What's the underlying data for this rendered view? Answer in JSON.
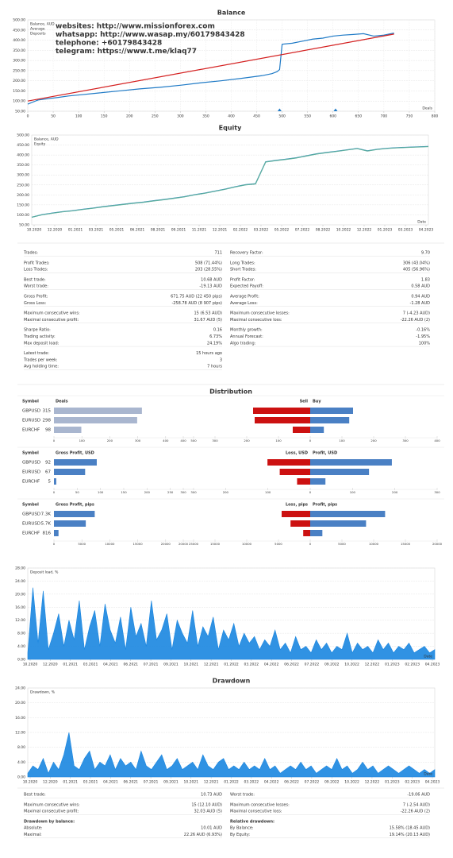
{
  "chart_data": [
    {
      "type": "line",
      "title": "Balance",
      "xlabel": "Deals",
      "xlim": [
        0,
        800
      ],
      "xticks": [
        0,
        50,
        100,
        150,
        200,
        250,
        300,
        350,
        400,
        450,
        500,
        550,
        600,
        650,
        700,
        750,
        800
      ],
      "ylim": [
        50,
        500
      ],
      "yticks": [
        {
          "value": 50,
          "label": "50.00"
        },
        {
          "value": 100,
          "label": "100.00"
        },
        {
          "value": 150,
          "label": "150.00"
        },
        {
          "value": 200,
          "label": "200.00"
        },
        {
          "value": 250,
          "label": "250.00"
        },
        {
          "value": 300,
          "label": "300.00"
        },
        {
          "value": 350,
          "label": "350.00"
        },
        {
          "value": 400,
          "label": "400.00"
        },
        {
          "value": 450,
          "label": "450.00"
        },
        {
          "value": 500,
          "label": "500.00"
        }
      ],
      "grid": true,
      "series": [
        {
          "name": "Balance, AUD",
          "color": "#1f7ac6",
          "x": [
            0,
            10,
            20,
            40,
            60,
            80,
            100,
            140,
            180,
            220,
            260,
            300,
            340,
            380,
            420,
            460,
            480,
            490,
            495,
            500,
            520,
            540,
            560,
            580,
            600,
            620,
            640,
            660,
            680,
            700,
            720
          ],
          "values": [
            85,
            95,
            105,
            112,
            118,
            125,
            130,
            140,
            150,
            160,
            168,
            178,
            190,
            200,
            212,
            225,
            235,
            245,
            255,
            380,
            385,
            395,
            405,
            410,
            420,
            425,
            428,
            432,
            420,
            425,
            435
          ]
        },
        {
          "name": "Average",
          "color": "#d42020",
          "x": [
            0,
            720
          ],
          "values": [
            100,
            430
          ]
        },
        {
          "name": "Deposits",
          "color": "#2a9a3a",
          "x": [
            495,
            605
          ]
        }
      ],
      "annotations": [
        "websites: http://www.missionforex.com",
        "whatsapp: http://www.wasap.my/60179843428",
        "telephone: +60179843428",
        "telegram: https://www.t.me/klaq77"
      ],
      "annotation_color": "#e81c1c"
    },
    {
      "type": "line",
      "title": "Equity",
      "xlabel": "Date",
      "xticks": [
        "10.2020",
        "12.2020",
        "01.2021",
        "03.2021",
        "05.2021",
        "06.2021",
        "08.2021",
        "09.2021",
        "11.2021",
        "12.2021",
        "02.2022",
        "03.2022",
        "05.2022",
        "07.2022",
        "08.2022",
        "10.2022",
        "12.2022",
        "01.2023",
        "03.2023",
        "04.2023"
      ],
      "ylim": [
        50,
        500
      ],
      "yticks": [
        {
          "value": 50,
          "label": "50.00"
        },
        {
          "value": 100,
          "label": "100.00"
        },
        {
          "value": 150,
          "label": "150.00"
        },
        {
          "value": 200,
          "label": "200.00"
        },
        {
          "value": 250,
          "label": "250.00"
        },
        {
          "value": 300,
          "label": "300.00"
        },
        {
          "value": 350,
          "label": "350.00"
        },
        {
          "value": 400,
          "label": "400.00"
        },
        {
          "value": 450,
          "label": "450.00"
        },
        {
          "value": 500,
          "label": "500.00"
        }
      ],
      "grid": true,
      "series": [
        {
          "name": "Balance, AUD",
          "color": "#1f7ac6",
          "values": [
            88,
            101,
            109,
            116,
            121,
            128,
            134,
            141,
            147,
            153,
            159,
            164,
            171,
            177,
            184,
            191,
            201,
            209,
            219,
            229,
            241,
            251,
            256,
            366,
            373,
            379,
            386,
            396,
            406,
            413,
            419,
            426,
            433,
            421,
            429,
            434,
            437,
            439,
            441,
            443
          ]
        },
        {
          "name": "Equity",
          "color": "#5cae9c",
          "values": [
            88,
            100,
            108,
            115,
            120,
            127,
            133,
            140,
            146,
            152,
            158,
            163,
            170,
            176,
            183,
            190,
            200,
            208,
            218,
            228,
            240,
            250,
            255,
            365,
            372,
            378,
            385,
            395,
            405,
            412,
            418,
            425,
            432,
            420,
            428,
            433,
            436,
            438,
            440,
            442
          ]
        }
      ]
    },
    {
      "type": "area",
      "xlabel": "Date",
      "xticks": [
        "10.2020",
        "12.2020",
        "01.2021",
        "03.2021",
        "04.2021",
        "06.2021",
        "07.2021",
        "09.2021",
        "10.2021",
        "12.2021",
        "01.2022",
        "03.2022",
        "04.2022",
        "06.2022",
        "07.2022",
        "09.2022",
        "10.2022",
        "12.2022",
        "01.2023",
        "02.2023",
        "04.2023"
      ],
      "ylim": [
        0,
        28
      ],
      "yticks": [
        {
          "value": 0,
          "label": "0.00"
        },
        {
          "value": 4,
          "label": "4.00"
        },
        {
          "value": 8,
          "label": "8.00"
        },
        {
          "value": 12,
          "label": "12.00"
        },
        {
          "value": 16,
          "label": "16.00"
        },
        {
          "value": 20,
          "label": "20.00"
        },
        {
          "value": 24,
          "label": "24.00"
        },
        {
          "value": 28,
          "label": "28.00"
        }
      ],
      "grid": true,
      "series": [
        {
          "name": "Deposit load, %",
          "color": "#1a86e0",
          "values": [
            2,
            22,
            5,
            21,
            3,
            8,
            14,
            4,
            12,
            6,
            18,
            3,
            10,
            15,
            4,
            17,
            9,
            5,
            13,
            3,
            16,
            7,
            11,
            4,
            18,
            6,
            9,
            14,
            3,
            12,
            8,
            5,
            15,
            4,
            10,
            7,
            13,
            3,
            9,
            6,
            11,
            4,
            8,
            5,
            7,
            3,
            6,
            4,
            9,
            3,
            5,
            2,
            7,
            3,
            4,
            2,
            6,
            3,
            5,
            2,
            4,
            3,
            8,
            2,
            5,
            3,
            4,
            2,
            6,
            3,
            5,
            2,
            4,
            3,
            5,
            2,
            3,
            4,
            2,
            3
          ]
        }
      ]
    },
    {
      "type": "area",
      "title": "Drawdown",
      "xlabel": "Date",
      "xticks": [
        "10.2020",
        "12.2020",
        "01.2021",
        "03.2021",
        "04.2021",
        "06.2021",
        "07.2021",
        "09.2021",
        "10.2021",
        "12.2021",
        "01.2022",
        "03.2022",
        "04.2022",
        "06.2022",
        "07.2022",
        "09.2022",
        "10.2022",
        "12.2022",
        "01.2023",
        "02.2023",
        "04.2023"
      ],
      "ylim": [
        0,
        24
      ],
      "yticks": [
        {
          "value": 0,
          "label": "0.00"
        },
        {
          "value": 4,
          "label": "4.00"
        },
        {
          "value": 8,
          "label": "8.00"
        },
        {
          "value": 12,
          "label": "12.00"
        },
        {
          "value": 16,
          "label": "16.00"
        },
        {
          "value": 20,
          "label": "20.00"
        },
        {
          "value": 24,
          "label": "24.00"
        }
      ],
      "grid": true,
      "series": [
        {
          "name": "Drawdown, %",
          "color": "#1a86e0",
          "values": [
            1,
            3,
            2,
            5,
            1,
            4,
            2,
            6,
            12,
            3,
            2,
            5,
            7,
            2,
            4,
            3,
            6,
            2,
            5,
            3,
            4,
            2,
            7,
            3,
            2,
            4,
            6,
            2,
            3,
            5,
            2,
            3,
            4,
            2,
            6,
            3,
            2,
            4,
            5,
            2,
            3,
            2,
            4,
            2,
            3,
            2,
            5,
            2,
            3,
            1,
            2,
            3,
            2,
            4,
            2,
            3,
            1,
            2,
            3,
            2,
            5,
            2,
            3,
            1,
            2,
            4,
            2,
            3,
            1,
            2,
            3,
            2,
            1,
            2,
            3,
            2,
            1,
            2,
            1,
            2
          ]
        }
      ]
    }
  ],
  "stats": {
    "left": [
      {
        "rows": [
          {
            "label": "Trades:",
            "value": "711"
          }
        ]
      },
      {
        "rows": [
          {
            "label": "Profit Trades:",
            "value": "508 (71.44%)"
          },
          {
            "label": "Loss Trades:",
            "value": "203 (28.55%)"
          }
        ]
      },
      {
        "rows": [
          {
            "label": "Best trade:",
            "value": "10.68 AUD"
          },
          {
            "label": "Worst trade:",
            "value": "-19.13 AUD",
            "color": "#d42020"
          }
        ]
      },
      {
        "rows": [
          {
            "label": "Gross Profit:",
            "value": "671.75 AUD (22 450 pips)",
            "color": "#d42020"
          },
          {
            "label": "Gross Loss:",
            "value": "-258.78 AUD (8 907 pips)",
            "color": "#d42020"
          }
        ]
      },
      {
        "rows": [
          {
            "label": "Maximum consecutive wins:",
            "value": "15 (6.53 AUD)"
          },
          {
            "label": "Maximal consecutive profit:",
            "value": "31.67 AUD (5)"
          }
        ]
      },
      {
        "rows": [
          {
            "label": "Sharpe Ratio:",
            "value": "0.16"
          },
          {
            "label": "Trading activity:",
            "value": "6.73%"
          },
          {
            "label": "Max deposit load:",
            "value": "24.19%"
          }
        ]
      },
      {
        "rows": [
          {
            "label": "Latest trade:",
            "value": "15 hours ago"
          },
          {
            "label": "Trades per week:",
            "value": "3"
          },
          {
            "label": "Avg holding time:",
            "value": "7 hours"
          }
        ]
      }
    ],
    "right": [
      {
        "rows": [
          {
            "label": "Recovery Factor:",
            "value": "9.70"
          }
        ]
      },
      {
        "rows": [
          {
            "label": "Long Trades:",
            "value": "306 (43.04%)"
          },
          {
            "label": "Short Trades:",
            "value": "405 (56.96%)"
          }
        ]
      },
      {
        "rows": [
          {
            "label": "Profit Factor:",
            "value": "1.83"
          },
          {
            "label": "Expected Payoff:",
            "value": "0.58 AUD"
          }
        ]
      },
      {
        "rows": [
          {
            "label": "Average Profit:",
            "value": "0.94 AUD"
          },
          {
            "label": "Average Loss:",
            "value": "-1.28 AUD",
            "color": "#d42020"
          }
        ]
      },
      {
        "rows": [
          {
            "label": "Maximum consecutive losses:",
            "value": "7 (-4.23 AUD)",
            "color": "#d42020"
          },
          {
            "label": "Maximal consecutive loss:",
            "value": "-22.26 AUD (2)",
            "color": "#d42020"
          }
        ]
      },
      {
        "rows": [
          {
            "label": "Monthly growth:",
            "value": "-0.16%",
            "color": "#d42020"
          },
          {
            "label": "Annual Forecast:",
            "value": "-1.95%",
            "color": "#d42020"
          },
          {
            "label": "Algo trading:",
            "value": "100%"
          }
        ]
      }
    ]
  },
  "distribution": {
    "title": "Distribution",
    "panels": [
      {
        "symbol_header": "Symbol",
        "symbols": [
          "GBPUSD",
          "EURUSD",
          "EURCHF"
        ],
        "left": {
          "title": "Deals",
          "color": "#a9b6cf",
          "values": [
            315,
            298,
            98
          ],
          "xlim": [
            0,
            500
          ],
          "xticks": [
            0,
            100,
            200,
            300,
            400,
            500
          ]
        },
        "right": {
          "xlim": [
            0,
            400
          ],
          "xticks": [
            0,
            100,
            200,
            300,
            400
          ],
          "series": [
            {
              "name": "Sell",
              "color": "#cc1111",
              "values": [
                180,
                175,
                55
              ]
            },
            {
              "name": "Buy",
              "color": "#4a80c4",
              "values": [
                135,
                123,
                43
              ]
            }
          ]
        }
      },
      {
        "symbol_header": "Symbol",
        "symbols": [
          "GBPUSD",
          "EURUSD",
          "EURCHF"
        ],
        "left": {
          "title": "Gross Profit, USD",
          "color": "#4a80c4",
          "values": [
            92,
            67,
            5
          ],
          "xlim": [
            0,
            300
          ],
          "xticks": [
            0,
            50,
            100,
            150,
            200,
            250,
            300
          ]
        },
        "right": {
          "xlim": [
            0,
            300
          ],
          "xticks": [
            0,
            100,
            200,
            300
          ],
          "series": [
            {
              "name": "Loss, USD",
              "color": "#cc1111",
              "values": [
                101,
                72,
                31
              ]
            },
            {
              "name": "Profit, USD",
              "color": "#4a80c4",
              "values": [
                193,
                139,
                36
              ]
            }
          ]
        }
      },
      {
        "symbol_header": "Symbol",
        "symbols": [
          "GBPUSD",
          "EURUSD",
          "EURCHF"
        ],
        "left": {
          "title": "Gross Profit, pips",
          "color": "#4a80c4",
          "values": [
            7300,
            5700,
            816
          ],
          "value_labels": [
            "7.3K",
            "5.7K",
            "816"
          ],
          "xlim": [
            0,
            25000
          ],
          "xticks": [
            0,
            5000,
            10000,
            15000,
            20000,
            25000
          ]
        },
        "right": {
          "xlim": [
            0,
            20000
          ],
          "xticks": [
            0,
            5000,
            10000,
            15000,
            20000
          ],
          "series": [
            {
              "name": "Loss, pips",
              "color": "#cc1111",
              "values": [
                4500,
                3100,
                1100
              ]
            },
            {
              "name": "Profit, pips",
              "color": "#4a80c4",
              "values": [
                11800,
                8800,
                1916
              ]
            }
          ]
        }
      }
    ]
  },
  "drawdown_stats": {
    "left": [
      {
        "rows": [
          {
            "label": "Best trade:",
            "value": "10.73 AUD"
          }
        ]
      },
      {
        "rows": [
          {
            "label": "Maximum consecutive wins:",
            "value": "15 (12.10 AUD)"
          },
          {
            "label": "Maximal consecutive profit:",
            "value": "32.03 AUD (5)"
          }
        ]
      },
      {
        "heading": "Drawdown by balance:",
        "rows": [
          {
            "label": "Absolute:",
            "value": "10.01 AUD",
            "color": "#d42020"
          },
          {
            "label": "Maximal:",
            "value": "22.26 AUD (6.93%)",
            "color": "#d42020"
          }
        ]
      }
    ],
    "right": [
      {
        "rows": [
          {
            "label": "Worst trade:",
            "value": "-19.06 AUD",
            "color": "#d42020"
          }
        ]
      },
      {
        "rows": [
          {
            "label": "Maximum consecutive losses:",
            "value": "7 (-2.54 AUD)",
            "color": "#d42020"
          },
          {
            "label": "Maximal consecutive loss:",
            "value": "-22.26 AUD (2)",
            "color": "#d42020"
          }
        ]
      },
      {
        "heading": "Relative drawdown:",
        "rows": [
          {
            "label": "By Balance:",
            "value": "15.58% (18.45 AUD)"
          },
          {
            "label": "By Equity:",
            "value": "19.14% (20.13 AUD)"
          }
        ]
      }
    ]
  }
}
